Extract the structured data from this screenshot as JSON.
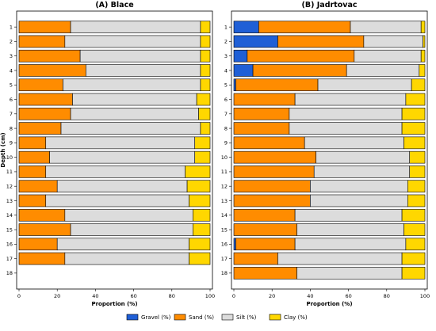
{
  "chart_data": [
    {
      "type": "bar",
      "orientation": "horizontal",
      "stacked": true,
      "title": "(A) Blace",
      "xlabel": "Proportion (%)",
      "ylabel": "Depth (cm)",
      "xlim": [
        0,
        100
      ],
      "xticks": [
        "0",
        "20",
        "40",
        "60",
        "80",
        "100"
      ],
      "categories": [
        "1",
        "2",
        "3",
        "4",
        "5",
        "6",
        "7",
        "8",
        "9",
        "10",
        "11",
        "12",
        "13",
        "14",
        "15",
        "16",
        "17",
        "18"
      ],
      "series": [
        {
          "name": "Gravel (%)",
          "values": [
            0,
            0,
            0,
            0,
            0,
            0,
            0,
            0,
            0,
            0,
            0,
            0,
            0,
            0,
            0,
            0,
            0,
            null
          ]
        },
        {
          "name": "Sand (%)",
          "values": [
            27,
            24,
            32,
            35,
            23,
            28,
            27,
            22,
            14,
            16,
            14,
            20,
            14,
            24,
            27,
            20,
            24,
            null
          ]
        },
        {
          "name": "Silt (%)",
          "values": [
            68,
            71,
            63,
            60,
            72,
            65,
            67,
            73,
            78,
            76,
            73,
            68,
            75,
            67,
            64,
            69,
            65,
            null
          ]
        },
        {
          "name": "Clay (%)",
          "values": [
            5,
            5,
            5,
            5,
            5,
            7,
            6,
            5,
            8,
            8,
            13,
            12,
            11,
            9,
            9,
            11,
            11,
            null
          ]
        }
      ]
    },
    {
      "type": "bar",
      "orientation": "horizontal",
      "stacked": true,
      "title": "(B) Jadrtovac",
      "xlabel": "Proportion (%)",
      "ylabel": "",
      "xlim": [
        0,
        100
      ],
      "xticks": [
        "0",
        "20",
        "40",
        "60",
        "80",
        "100"
      ],
      "categories": [
        "1",
        "2",
        "3",
        "4",
        "5",
        "6",
        "7",
        "8",
        "9",
        "10",
        "11",
        "12",
        "13",
        "14",
        "15",
        "16",
        "17",
        "18"
      ],
      "series": [
        {
          "name": "Gravel (%)",
          "values": [
            13,
            23,
            7,
            10,
            1,
            0,
            0,
            0,
            0,
            0,
            0,
            0,
            0,
            0,
            0,
            1,
            0,
            0
          ]
        },
        {
          "name": "Sand (%)",
          "values": [
            48,
            45,
            56,
            49,
            43,
            32,
            29,
            29,
            37,
            43,
            42,
            40,
            40,
            32,
            33,
            31,
            23,
            33
          ]
        },
        {
          "name": "Silt (%)",
          "values": [
            37,
            31,
            35,
            38,
            49,
            58,
            59,
            59,
            52,
            49,
            50,
            51,
            51,
            56,
            56,
            58,
            65,
            55
          ]
        },
        {
          "name": "Clay (%)",
          "values": [
            2,
            1,
            2,
            3,
            7,
            10,
            12,
            12,
            11,
            8,
            8,
            9,
            9,
            12,
            11,
            10,
            12,
            12
          ]
        }
      ]
    }
  ],
  "legend": {
    "placement": "bottom-center",
    "items": [
      {
        "label": "Gravel (%)",
        "color": "#1f5fd6"
      },
      {
        "label": "Sand (%)",
        "color": "#ff8c00"
      },
      {
        "label": "Silt (%)",
        "color": "#dcdcdc"
      },
      {
        "label": "Clay (%)",
        "color": "#ffd700"
      }
    ]
  }
}
